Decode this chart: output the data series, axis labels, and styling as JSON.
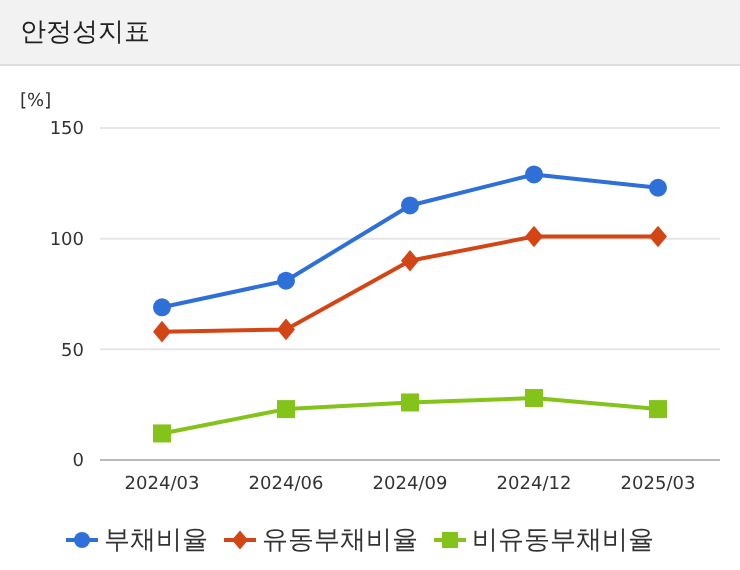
{
  "chart_data": {
    "type": "line",
    "title": "안정성지표",
    "ylabel": "[%]",
    "categories": [
      "2024/03",
      "2024/06",
      "2024/09",
      "2024/12",
      "2025/03"
    ],
    "series": [
      {
        "name": "부채비율",
        "color": "#2f6fd8",
        "marker": "circle",
        "values": [
          69,
          81,
          115,
          129,
          123
        ]
      },
      {
        "name": "유동부채비율",
        "color": "#d44516",
        "marker": "diamond",
        "values": [
          58,
          59,
          90,
          101,
          101
        ]
      },
      {
        "name": "비유동부채비율",
        "color": "#84c31a",
        "marker": "square",
        "values": [
          12,
          23,
          26,
          28,
          23
        ]
      }
    ],
    "ylim": [
      0,
      150
    ],
    "yticks": [
      0,
      50,
      100,
      150
    ],
    "grid": "y",
    "legend": "bottom"
  }
}
